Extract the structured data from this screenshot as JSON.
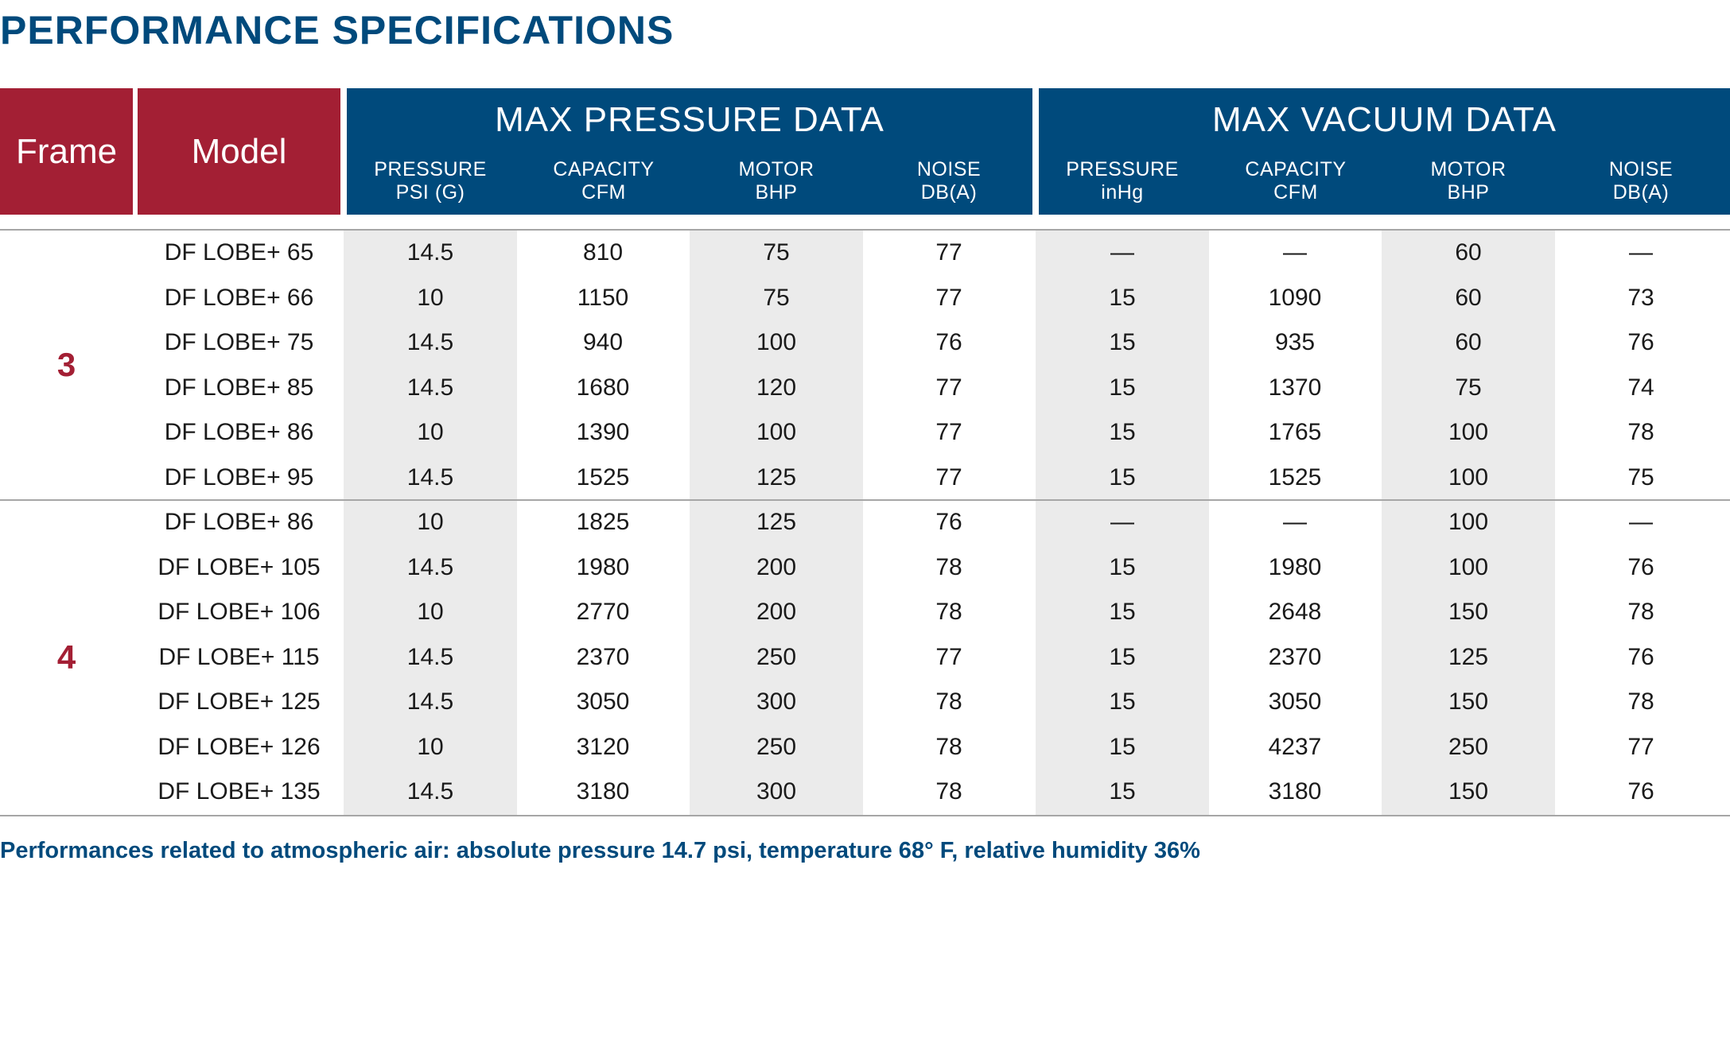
{
  "title": "PERFORMANCE SPECIFICATIONS",
  "header": {
    "frame": "Frame",
    "model": "Model",
    "pressure_group": {
      "title": "MAX PRESSURE DATA",
      "columns": [
        {
          "line1": "PRESSURE",
          "line2": "PSI (G)"
        },
        {
          "line1": "CAPACITY",
          "line2": "CFM"
        },
        {
          "line1": "MOTOR",
          "line2": "BHP"
        },
        {
          "line1": "NOISE",
          "line2": "DB(A)"
        }
      ]
    },
    "vacuum_group": {
      "title": "MAX VACUUM DATA",
      "columns": [
        {
          "line1": "PRESSURE",
          "line2": "inHg"
        },
        {
          "line1": "CAPACITY",
          "line2": "CFM"
        },
        {
          "line1": "MOTOR",
          "line2": "BHP"
        },
        {
          "line1": "NOISE",
          "line2": "DB(A)"
        }
      ]
    }
  },
  "groups": [
    {
      "frame": "3",
      "rows": [
        {
          "model": "DF LOBE+ 65",
          "values": [
            "14.5",
            "810",
            "75",
            "77",
            "—",
            "—",
            "60",
            "—"
          ]
        },
        {
          "model": "DF LOBE+ 66",
          "values": [
            "10",
            "1150",
            "75",
            "77",
            "15",
            "1090",
            "60",
            "73"
          ]
        },
        {
          "model": "DF LOBE+ 75",
          "values": [
            "14.5",
            "940",
            "100",
            "76",
            "15",
            "935",
            "60",
            "76"
          ]
        },
        {
          "model": "DF LOBE+ 85",
          "values": [
            "14.5",
            "1680",
            "120",
            "77",
            "15",
            "1370",
            "75",
            "74"
          ]
        },
        {
          "model": "DF LOBE+ 86",
          "values": [
            "10",
            "1390",
            "100",
            "77",
            "15",
            "1765",
            "100",
            "78"
          ]
        },
        {
          "model": "DF LOBE+ 95",
          "values": [
            "14.5",
            "1525",
            "125",
            "77",
            "15",
            "1525",
            "100",
            "75"
          ]
        }
      ]
    },
    {
      "frame": "4",
      "rows": [
        {
          "model": "DF LOBE+ 86",
          "values": [
            "10",
            "1825",
            "125",
            "76",
            "—",
            "—",
            "100",
            "—"
          ]
        },
        {
          "model": "DF LOBE+ 105",
          "values": [
            "14.5",
            "1980",
            "200",
            "78",
            "15",
            "1980",
            "100",
            "76"
          ]
        },
        {
          "model": "DF LOBE+ 106",
          "values": [
            "10",
            "2770",
            "200",
            "78",
            "15",
            "2648",
            "150",
            "78"
          ]
        },
        {
          "model": "DF LOBE+ 115",
          "values": [
            "14.5",
            "2370",
            "250",
            "77",
            "15",
            "2370",
            "125",
            "76"
          ]
        },
        {
          "model": "DF LOBE+ 125",
          "values": [
            "14.5",
            "3050",
            "300",
            "78",
            "15",
            "3050",
            "150",
            "78"
          ]
        },
        {
          "model": "DF LOBE+ 126",
          "values": [
            "10",
            "3120",
            "250",
            "78",
            "15",
            "4237",
            "250",
            "77"
          ]
        },
        {
          "model": "DF LOBE+ 135",
          "values": [
            "14.5",
            "3180",
            "300",
            "78",
            "15",
            "3180",
            "150",
            "76"
          ]
        }
      ]
    }
  ],
  "footnote": "Performances related to atmospheric air: absolute pressure 14.7 psi, temperature 68° F, relative humidity 36%",
  "colors": {
    "brand_blue": "#004a7c",
    "brand_red": "#a31f34",
    "column_shade": "#ebebeb"
  }
}
